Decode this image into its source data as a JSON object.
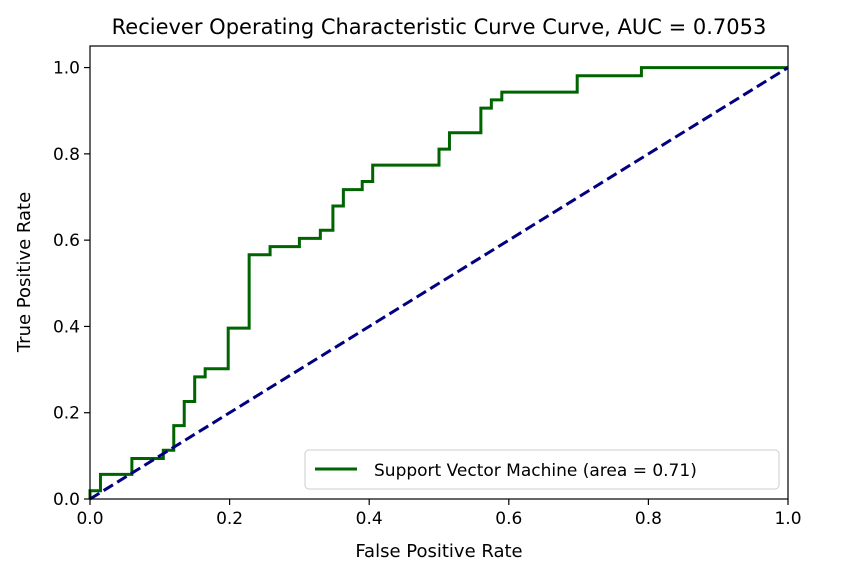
{
  "chart_data": {
    "type": "line",
    "title": "Reciever Operating Characteristic Curve Curve, AUC = 0.7053",
    "xlabel": "False Positive Rate",
    "ylabel": "True Positive Rate",
    "xlim": [
      0.0,
      1.0
    ],
    "ylim": [
      0.0,
      1.05
    ],
    "xticks": [
      "0.0",
      "0.2",
      "0.4",
      "0.6",
      "0.8",
      "1.0"
    ],
    "yticks": [
      "0.0",
      "0.2",
      "0.4",
      "0.6",
      "0.8",
      "1.0"
    ],
    "grid": false,
    "legend_position": "lower-right",
    "series": [
      {
        "name": "Support Vector Machine (area = 0.71)",
        "color": "#006400",
        "style": "solid",
        "x": [
          0.0,
          0.0,
          0.015,
          0.015,
          0.06,
          0.06,
          0.105,
          0.105,
          0.12,
          0.12,
          0.135,
          0.135,
          0.15,
          0.15,
          0.165,
          0.165,
          0.198,
          0.198,
          0.228,
          0.228,
          0.258,
          0.258,
          0.3,
          0.3,
          0.33,
          0.33,
          0.348,
          0.348,
          0.363,
          0.363,
          0.39,
          0.39,
          0.405,
          0.405,
          0.5,
          0.5,
          0.515,
          0.515,
          0.56,
          0.56,
          0.575,
          0.575,
          0.59,
          0.59,
          0.698,
          0.698,
          0.79,
          0.79,
          1.0
        ],
        "y": [
          0.0,
          0.019,
          0.019,
          0.057,
          0.057,
          0.094,
          0.094,
          0.113,
          0.113,
          0.17,
          0.17,
          0.226,
          0.226,
          0.283,
          0.283,
          0.302,
          0.302,
          0.396,
          0.396,
          0.566,
          0.566,
          0.585,
          0.585,
          0.604,
          0.604,
          0.623,
          0.623,
          0.679,
          0.679,
          0.717,
          0.717,
          0.736,
          0.736,
          0.774,
          0.774,
          0.811,
          0.811,
          0.849,
          0.849,
          0.906,
          0.906,
          0.925,
          0.925,
          0.943,
          0.943,
          0.981,
          0.981,
          1.0,
          1.0
        ]
      },
      {
        "name": "",
        "color": "#000080",
        "style": "dashed",
        "x": [
          0.0,
          1.0
        ],
        "y": [
          0.0,
          1.0
        ]
      }
    ]
  }
}
